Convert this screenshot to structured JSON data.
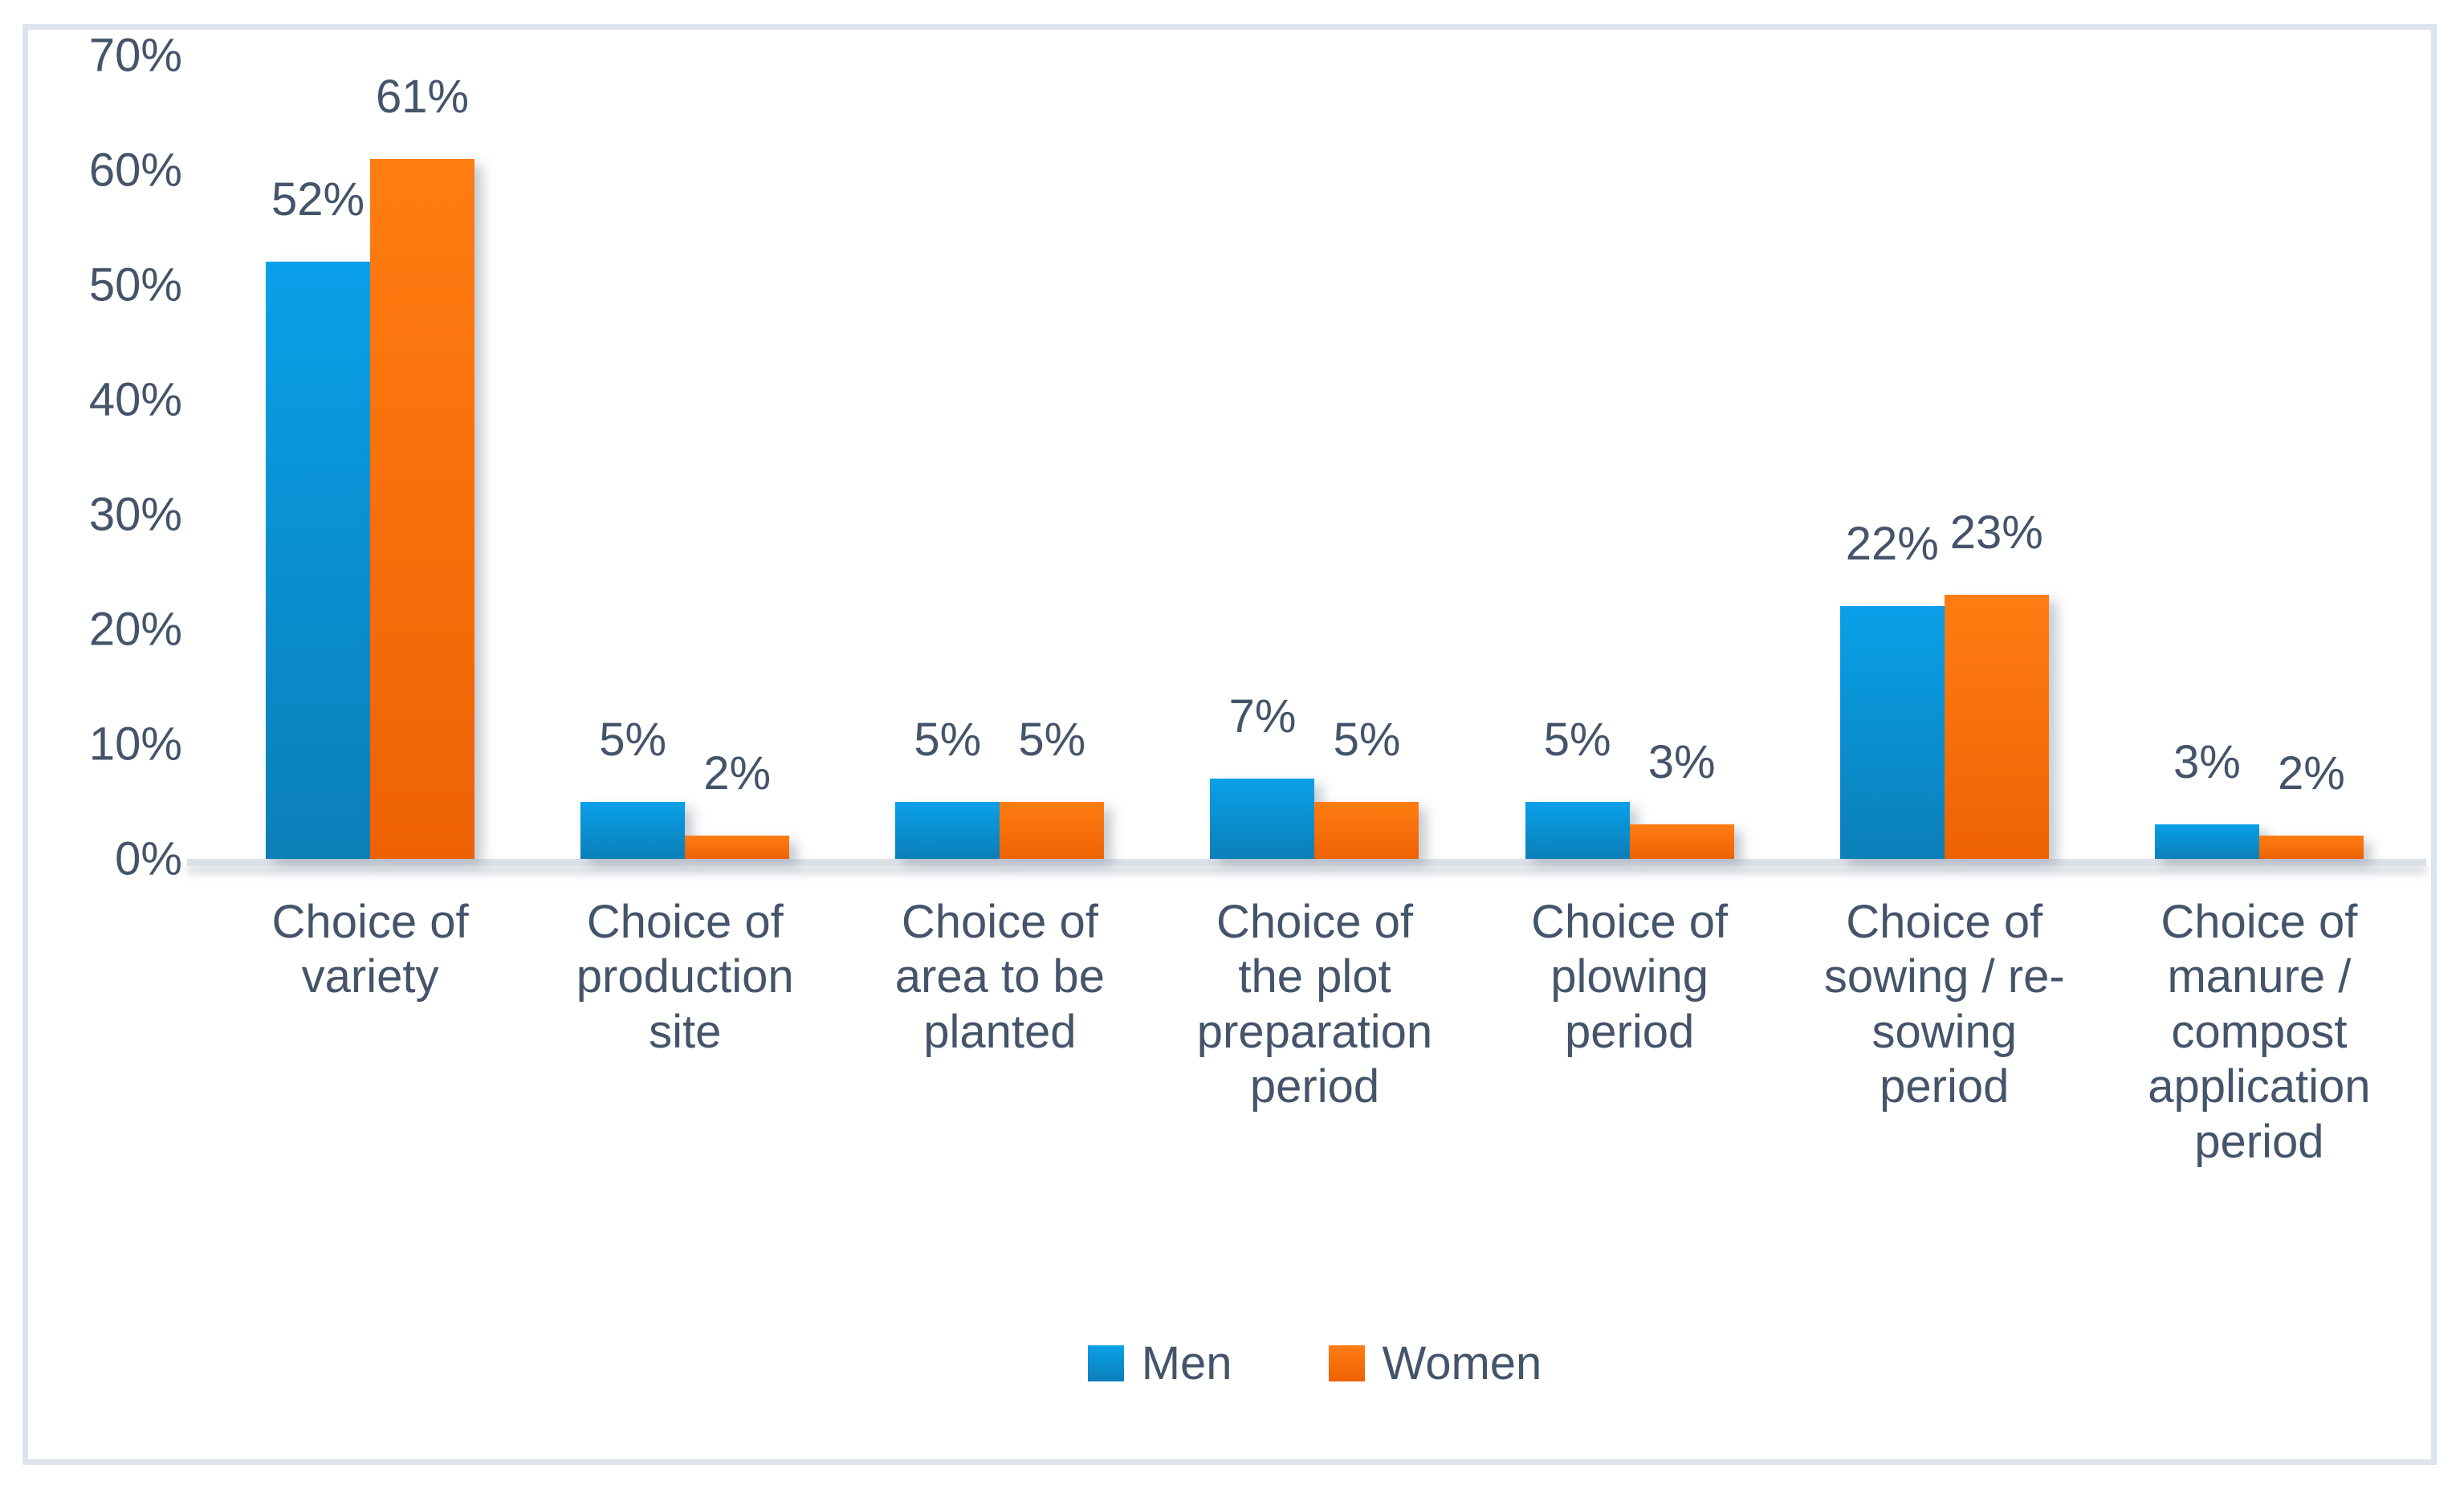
{
  "chart_data": {
    "type": "bar",
    "title": "",
    "xlabel": "",
    "ylabel": "",
    "ylim": [
      0,
      70
    ],
    "grid": false,
    "legend_position": "bottom",
    "value_suffix": "%",
    "categories": [
      "Choice of variety",
      "Choice of production site",
      "Choice of area to be planted",
      "Choice of the plot preparation period",
      "Choice of plowing period",
      "Choice of sowing / re-sowing period",
      "Choice of manure / compost application period"
    ],
    "category_display": [
      "Choice of\nvariety",
      "Choice of\nproduction\nsite",
      "Choice of\narea to be\nplanted",
      "Choice of\nthe plot\npreparation\nperiod",
      "Choice of\nplowing\nperiod",
      "Choice of\nsowing / re-\nsowing\nperiod",
      "Choice of\nmanure /\ncompost\napplication\nperiod"
    ],
    "series": [
      {
        "name": "Men",
        "values": [
          52,
          5,
          5,
          7,
          5,
          22,
          3
        ]
      },
      {
        "name": "Women",
        "values": [
          61,
          2,
          5,
          5,
          3,
          23,
          2
        ]
      }
    ],
    "yticks": [
      "0%",
      "10%",
      "20%",
      "30%",
      "40%",
      "50%",
      "60%",
      "70%"
    ],
    "data_labels": [
      [
        "52%",
        "5%",
        "5%",
        "7%",
        "5%",
        "22%",
        "3%"
      ],
      [
        "61%",
        "2%",
        "5%",
        "5%",
        "3%",
        "23%",
        "2%"
      ]
    ]
  },
  "colors": {
    "men": "#0a90d4",
    "women": "#f86e08",
    "text": "#44546A",
    "frame_border": "#dde4ee",
    "baseline": "#dce1e8",
    "background": "#ffffff"
  }
}
